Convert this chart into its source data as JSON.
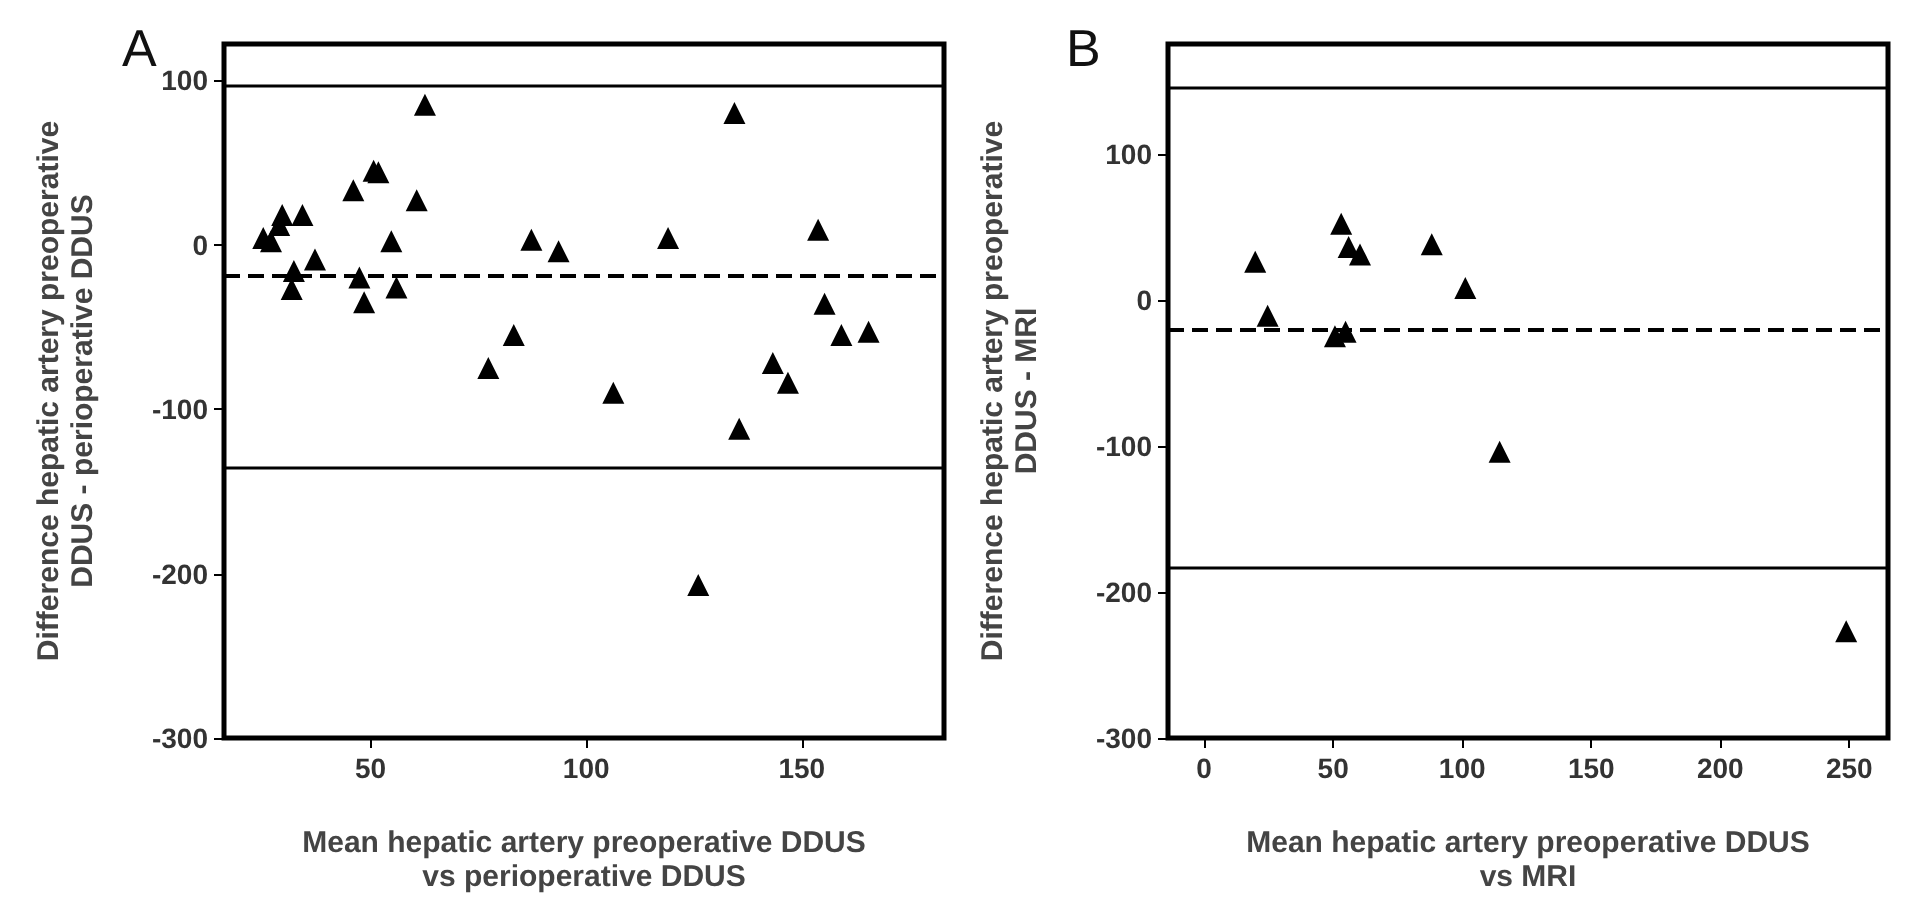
{
  "chart_data": [
    {
      "type": "scatter",
      "title": "A",
      "xlabel": "Mean hepatic artery preoperative DDUS vs perioperative DDUS",
      "ylabel": "Difference hepatic artery preoperative DDUS - perioperative DDUS",
      "marker": "triangle",
      "grid": false,
      "series": [
        {
          "color": "#000000",
          "x": [
            25.1,
            26.9,
            29.5,
            28.8,
            34.2,
            32.2,
            31.7,
            37.1,
            46,
            47.4,
            48.5,
            50.7,
            51.8,
            54.8,
            56,
            60.7,
            62.6,
            77.3,
            83.2,
            87.3,
            93.6,
            106.3,
            119,
            126,
            134.4,
            135.5,
            153.8,
            155.3,
            143.3,
            146.8,
            159.2,
            165.5
          ],
          "values": [
            4,
            2,
            18,
            12,
            18,
            -16,
            -27,
            -9,
            33,
            -20,
            -35,
            45,
            44,
            2,
            -26,
            27,
            85,
            -75,
            -55,
            3,
            -4,
            -90,
            4,
            -207,
            80,
            -112,
            9,
            -36,
            -72,
            -84,
            -55,
            -53
          ]
        }
      ],
      "xlim": [
        16,
        183
      ],
      "xticks": [
        50,
        100,
        150
      ],
      "ylim": [
        -300,
        122
      ],
      "yticks": [
        -300,
        -200,
        -100,
        0,
        100
      ],
      "ref_lines": [
        {
          "axis": "y",
          "value": 97,
          "line_style": "solid"
        },
        {
          "axis": "y",
          "value": -19,
          "line_style": "dashed"
        },
        {
          "axis": "y",
          "value": -135,
          "line_style": "solid"
        }
      ]
    },
    {
      "type": "scatter",
      "title": "B",
      "xlabel": "Mean hepatic artery preoperative DDUS vs MRI",
      "ylabel": "Difference hepatic artery preoperative DDUS - MRI",
      "marker": "triangle",
      "grid": false,
      "series": [
        {
          "color": "#000000",
          "x": [
            19.8,
            24.6,
            53.1,
            56,
            60.4,
            50.7,
            54.8,
            88.2,
            101.2,
            114.5,
            248.8
          ],
          "values": [
            26,
            -11,
            52,
            36,
            31,
            -25,
            -22,
            38,
            8,
            -104,
            -227
          ]
        }
      ],
      "xlim": [
        -14,
        265
      ],
      "xticks": [
        0,
        50,
        100,
        150,
        200,
        250
      ],
      "ylim": [
        -300,
        175
      ],
      "yticks": [
        -300,
        -200,
        -100,
        0,
        100
      ],
      "ref_lines": [
        {
          "axis": "y",
          "value": 145,
          "line_style": "solid"
        },
        {
          "axis": "y",
          "value": -20,
          "line_style": "dashed"
        },
        {
          "axis": "y",
          "value": -183,
          "line_style": "solid"
        }
      ]
    }
  ]
}
